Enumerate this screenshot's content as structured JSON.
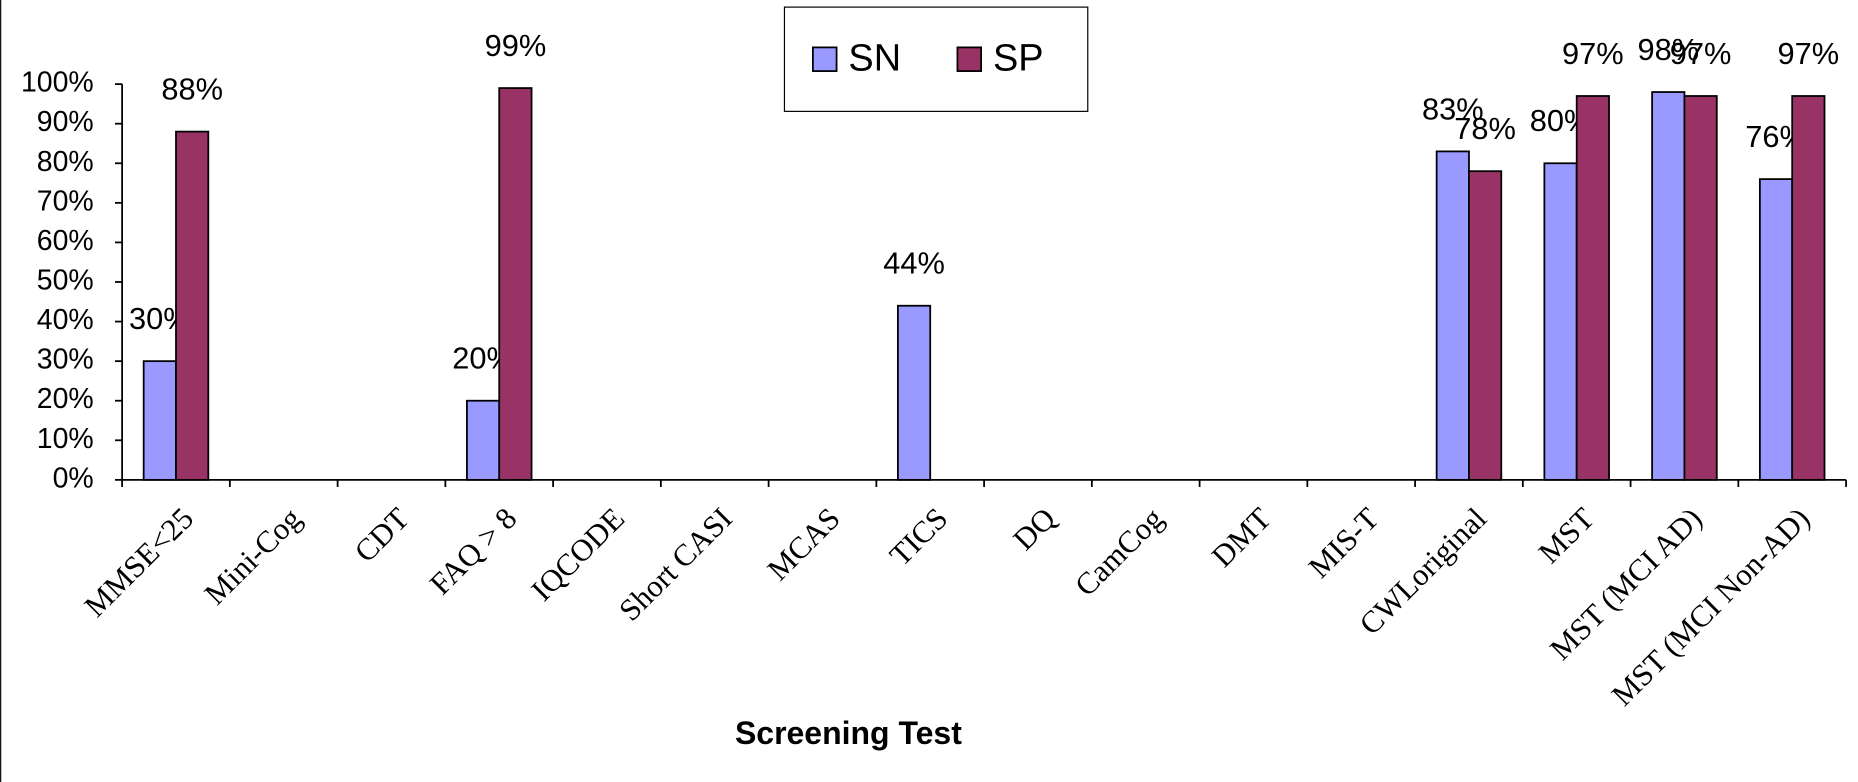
{
  "chart_data": {
    "type": "bar",
    "x_label": "Screening Test",
    "categories": [
      "MMSE<25",
      "Mini-Cog",
      "CDT",
      "FAQ > 8",
      "IQCODE",
      "Short CASI",
      "MCAS",
      "TICS",
      "DQ",
      "CamCog",
      "DMT",
      "MIS-T",
      "CWLoriginal",
      "MST",
      "MST (MCI AD)",
      "MST (MCI Non-AD)"
    ],
    "series": [
      {
        "name": "SN",
        "color": "#9999ff",
        "values": [
          30,
          null,
          null,
          20,
          null,
          null,
          null,
          44,
          null,
          null,
          null,
          null,
          83,
          80,
          98,
          76
        ],
        "value_labels": [
          "30%",
          null,
          null,
          "20%",
          null,
          null,
          null,
          "44%",
          null,
          null,
          null,
          null,
          "83%",
          "80%",
          "98%",
          "76%"
        ]
      },
      {
        "name": "SP",
        "color": "#993366",
        "values": [
          88,
          null,
          null,
          99,
          null,
          null,
          null,
          null,
          null,
          null,
          null,
          null,
          78,
          97,
          97,
          97
        ],
        "value_labels": [
          "88%",
          null,
          null,
          "99%",
          null,
          null,
          null,
          null,
          null,
          null,
          null,
          null,
          "78%",
          "97%",
          "97%",
          "97%"
        ]
      }
    ],
    "ylim": [
      0,
      100
    ],
    "yticks": [
      {
        "value": 0,
        "label": "0%"
      },
      {
        "value": 10,
        "label": "10%"
      },
      {
        "value": 20,
        "label": "20%"
      },
      {
        "value": 30,
        "label": "30%"
      },
      {
        "value": 40,
        "label": "40%"
      },
      {
        "value": 50,
        "label": "50%"
      },
      {
        "value": 60,
        "label": "60%"
      },
      {
        "value": 70,
        "label": "70%"
      },
      {
        "value": 80,
        "label": "80%"
      },
      {
        "value": 90,
        "label": "90%"
      },
      {
        "value": 100,
        "label": "100%"
      }
    ],
    "legend": "top"
  }
}
